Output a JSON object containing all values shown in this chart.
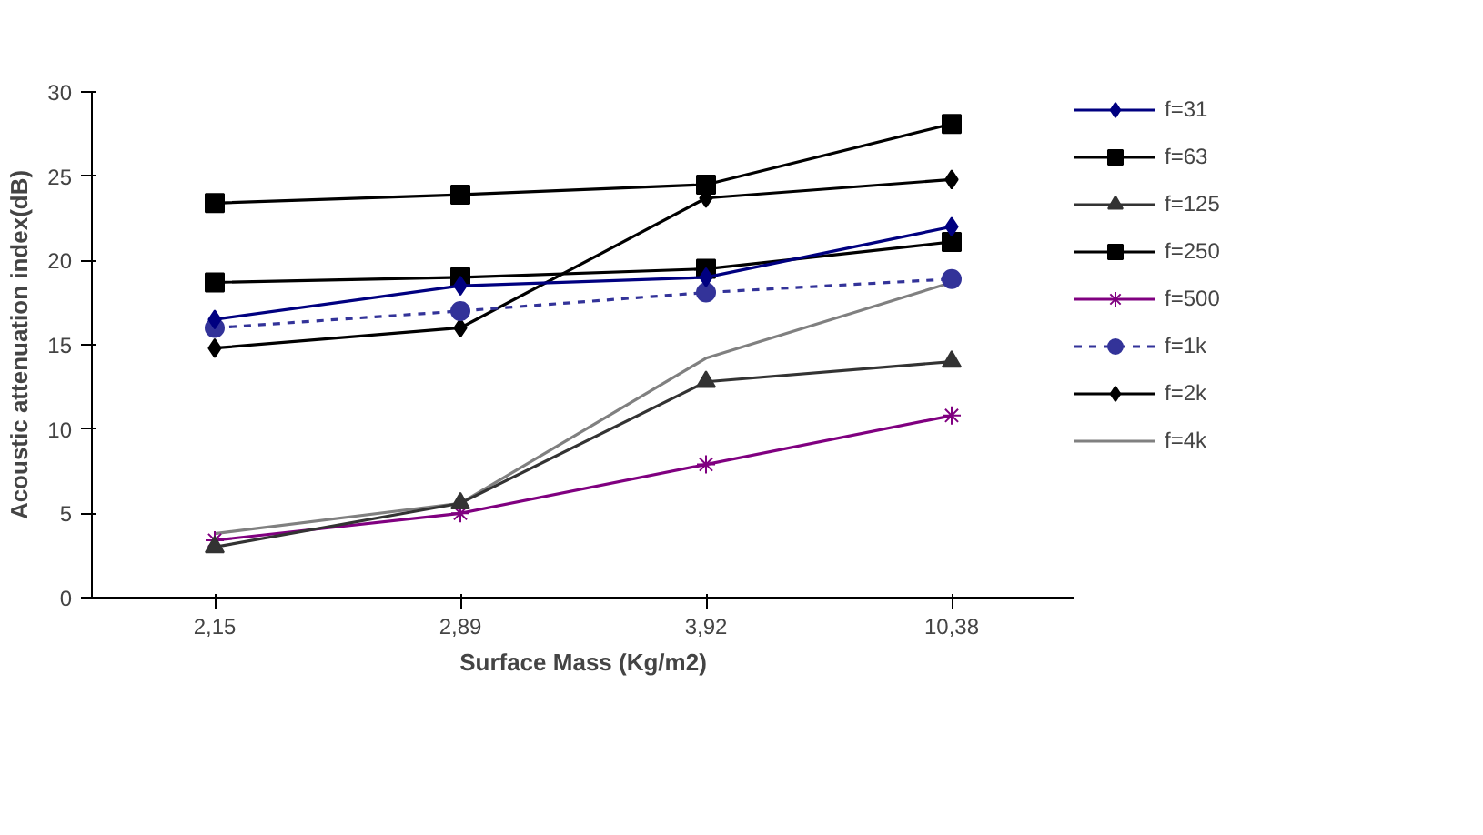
{
  "chart_data": {
    "type": "line",
    "xlabel": "Surface Mass (Kg/m2)",
    "ylabel": "Acoustic attenuation index(dB)",
    "categories": [
      "2,15",
      "2,89",
      "3,92",
      "10,38"
    ],
    "ylim": [
      0,
      30
    ],
    "yticks": [
      0,
      5,
      10,
      15,
      20,
      25,
      30
    ],
    "grid": false,
    "legend": "right",
    "series": [
      {
        "name": "f=31",
        "color": "#000080",
        "marker": "diamond",
        "line_style": "solid",
        "values": [
          16.5,
          18.5,
          19,
          22
        ]
      },
      {
        "name": "f=63",
        "color": "#000000",
        "marker": "square",
        "line_style": "solid",
        "values": [
          18.7,
          19,
          19.5,
          21.1
        ]
      },
      {
        "name": "f=125",
        "color": "#333333",
        "marker": "triangle",
        "line_style": "solid",
        "values": [
          3,
          5.6,
          12.8,
          14
        ]
      },
      {
        "name": "f=250",
        "color": "#000000",
        "marker": "square",
        "line_style": "solid",
        "values": [
          23.4,
          23.9,
          24.5,
          28.1
        ]
      },
      {
        "name": "f=500",
        "color": "#800080",
        "marker": "cross",
        "line_style": "solid",
        "values": [
          3.4,
          5,
          7.9,
          10.8
        ]
      },
      {
        "name": "f=1k",
        "color": "#333399",
        "marker": "circle",
        "line_style": "dashed",
        "values": [
          16,
          17,
          18.1,
          18.9
        ]
      },
      {
        "name": "f=2k",
        "color": "#000000",
        "marker": "diamond",
        "line_style": "solid",
        "values": [
          14.8,
          16,
          23.7,
          24.8
        ]
      },
      {
        "name": "f=4k",
        "color": "#808080",
        "marker": "none",
        "line_style": "solid",
        "values": [
          3.8,
          5.6,
          14.2,
          18.7
        ]
      }
    ]
  }
}
